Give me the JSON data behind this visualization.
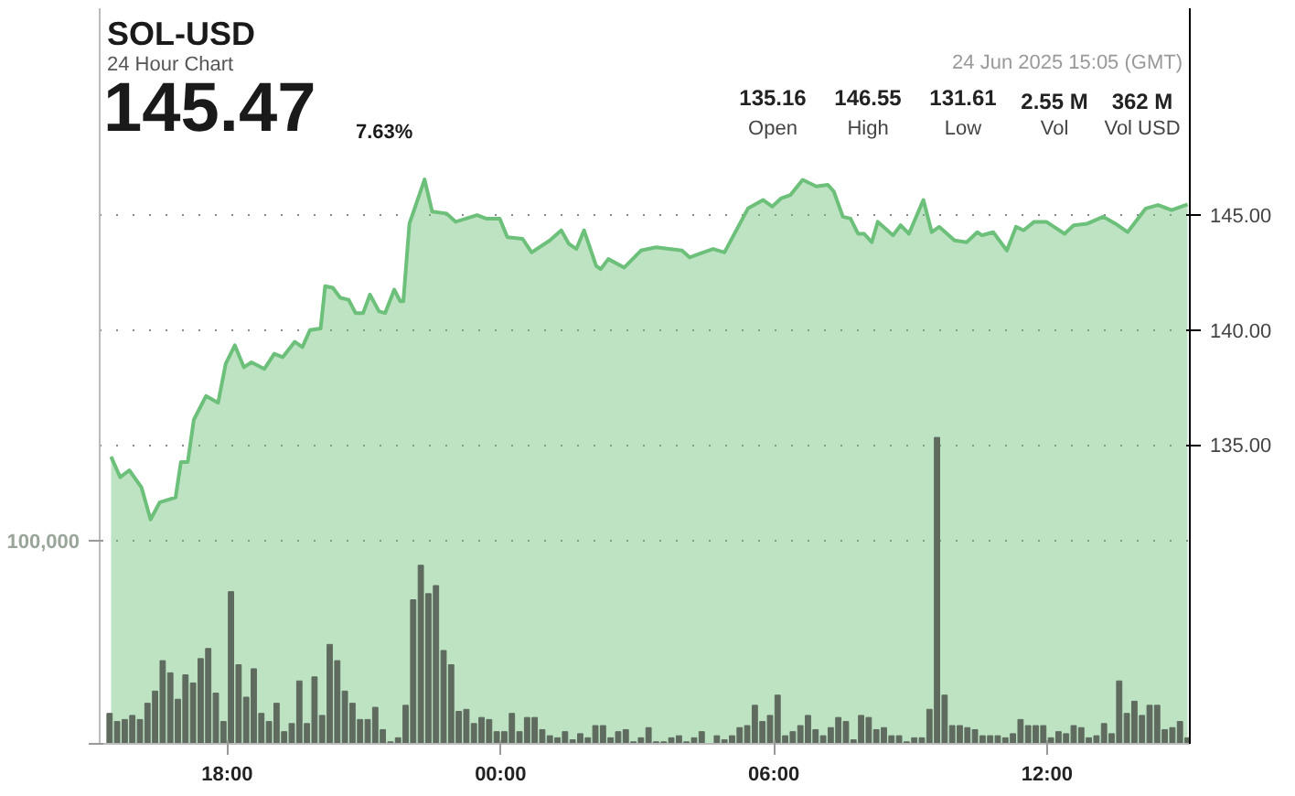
{
  "chart_data": {
    "type": "area",
    "title": "SOL-USD",
    "subtitle": "24 Hour Chart",
    "annotations": [
      "145.47",
      "7.63%",
      "135.16",
      "Open",
      "146.55",
      "High",
      "131.61",
      "Low",
      "2.55 M",
      "Vol",
      "362 M",
      "Vol USD",
      "24 Jun 2025 15:05 (GMT)"
    ],
    "xlim": [
      "2025-06-23T15:12",
      "2025-06-24T15:08"
    ],
    "xticks": [
      {
        "value": "2025-06-23T18:00",
        "label": "18:00"
      },
      {
        "value": "2025-06-24T00:00",
        "label": "00:00"
      },
      {
        "value": "2025-06-24T06:00",
        "label": "06:00"
      },
      {
        "value": "2025-06-24T12:00",
        "label": "12:00"
      }
    ],
    "ylim": [
      122,
      154
    ],
    "yticks": [
      {
        "value": 135,
        "label": "135.00"
      },
      {
        "value": 140,
        "label": "140.00"
      },
      {
        "value": 145,
        "label": "145.00"
      }
    ],
    "y2lim": [
      0,
      362500
    ],
    "y2ticks": [
      {
        "value": 0,
        "label": null
      },
      {
        "value": 100000,
        "label": "100,000"
      }
    ],
    "grid": "y",
    "series": [
      {
        "color": "#6cc07a",
        "x": [
          "2025-06-23T15:27",
          "2025-06-23T15:39",
          "2025-06-23T15:51",
          "2025-06-23T16:07",
          "2025-06-23T16:19",
          "2025-06-23T16:31",
          "2025-06-23T16:52",
          "2025-06-23T16:59",
          "2025-06-23T17:08",
          "2025-06-23T17:16",
          "2025-06-23T17:32",
          "2025-06-23T17:48",
          "2025-06-23T17:58",
          "2025-06-23T18:10",
          "2025-06-23T18:22",
          "2025-06-23T18:32",
          "2025-06-23T18:49",
          "2025-06-23T19:02",
          "2025-06-23T19:13",
          "2025-06-23T19:29",
          "2025-06-23T19:39",
          "2025-06-23T19:49",
          "2025-06-23T20:03",
          "2025-06-23T20:09",
          "2025-06-23T20:19",
          "2025-06-23T20:29",
          "2025-06-23T20:40",
          "2025-06-23T20:49",
          "2025-06-23T20:59",
          "2025-06-23T21:08",
          "2025-06-23T21:20",
          "2025-06-23T21:28",
          "2025-06-23T21:40",
          "2025-06-23T21:48",
          "2025-06-23T21:52",
          "2025-06-23T22:00",
          "2025-06-23T22:20",
          "2025-06-23T22:30",
          "2025-06-23T22:49",
          "2025-06-23T23:01",
          "2025-06-23T23:29",
          "2025-06-23T23:41",
          "2025-06-23T23:59",
          "2025-06-24T00:09",
          "2025-06-24T00:29",
          "2025-06-24T00:41",
          "2025-06-24T01:05",
          "2025-06-24T01:20",
          "2025-06-24T01:30",
          "2025-06-24T01:40",
          "2025-06-24T01:50",
          "2025-06-24T02:06",
          "2025-06-24T02:12",
          "2025-06-24T02:22",
          "2025-06-24T02:43",
          "2025-06-24T03:05",
          "2025-06-24T03:25",
          "2025-06-24T03:59",
          "2025-06-24T04:09",
          "2025-06-24T04:40",
          "2025-06-24T04:55",
          "2025-06-24T05:26",
          "2025-06-24T05:46",
          "2025-06-24T05:58",
          "2025-06-24T06:10",
          "2025-06-24T06:22",
          "2025-06-24T06:38",
          "2025-06-24T06:56",
          "2025-06-24T07:11",
          "2025-06-24T07:19",
          "2025-06-24T07:31",
          "2025-06-24T07:41",
          "2025-06-24T07:51",
          "2025-06-24T07:59",
          "2025-06-24T08:09",
          "2025-06-24T08:17",
          "2025-06-24T08:37",
          "2025-06-24T08:47",
          "2025-06-24T08:58",
          "2025-06-24T09:17",
          "2025-06-24T09:28",
          "2025-06-24T09:38",
          "2025-06-24T09:58",
          "2025-06-24T10:14",
          "2025-06-24T10:28",
          "2025-06-24T10:34",
          "2025-06-24T10:49",
          "2025-06-24T11:07",
          "2025-06-24T11:19",
          "2025-06-24T11:29",
          "2025-06-24T11:43",
          "2025-06-24T11:59",
          "2025-06-24T12:09",
          "2025-06-24T12:23",
          "2025-06-24T12:35",
          "2025-06-24T12:53",
          "2025-06-24T13:14",
          "2025-06-24T13:30",
          "2025-06-24T13:46",
          "2025-06-24T14:10",
          "2025-06-24T14:26",
          "2025-06-24T14:44",
          "2025-06-24T15:05"
        ],
        "values": [
          134.49,
          133.6,
          133.9,
          133.16,
          131.76,
          132.5,
          132.72,
          134.26,
          134.26,
          136.1,
          137.13,
          136.84,
          138.53,
          139.34,
          138.38,
          138.6,
          138.31,
          138.97,
          138.82,
          139.49,
          139.26,
          140.0,
          140.07,
          141.91,
          141.84,
          141.4,
          141.32,
          140.74,
          140.74,
          141.54,
          140.81,
          140.74,
          141.76,
          141.25,
          141.25,
          144.63,
          146.55,
          145.15,
          145.07,
          144.71,
          145.0,
          144.85,
          144.85,
          144.04,
          143.97,
          143.38,
          143.9,
          144.34,
          143.75,
          143.53,
          144.34,
          142.79,
          142.65,
          143.09,
          142.72,
          143.46,
          143.6,
          143.46,
          143.16,
          143.53,
          143.38,
          145.29,
          145.66,
          145.37,
          145.74,
          145.88,
          146.54,
          146.25,
          146.32,
          146.03,
          144.93,
          144.85,
          144.19,
          144.19,
          143.82,
          144.71,
          144.12,
          144.56,
          144.19,
          145.66,
          144.26,
          144.49,
          143.9,
          143.82,
          144.26,
          144.12,
          144.26,
          143.46,
          144.49,
          144.34,
          144.71,
          144.71,
          144.49,
          144.19,
          144.56,
          144.63,
          144.93,
          144.63,
          144.26,
          145.29,
          145.44,
          145.22,
          145.47
        ]
      },
      {
        "type": "bar",
        "axis": "y2",
        "color": "#5f6b5f",
        "x": [
          "2025-06-23T15:25",
          "2025-06-23T15:35",
          "2025-06-23T15:45",
          "2025-06-23T15:55",
          "2025-06-23T16:05",
          "2025-06-23T16:15",
          "2025-06-23T16:25",
          "2025-06-23T16:35",
          "2025-06-23T16:45",
          "2025-06-23T16:55",
          "2025-06-23T17:05",
          "2025-06-23T17:15",
          "2025-06-23T17:25",
          "2025-06-23T17:35",
          "2025-06-23T17:45",
          "2025-06-23T17:55",
          "2025-06-23T18:05",
          "2025-06-23T18:15",
          "2025-06-23T18:25",
          "2025-06-23T18:35",
          "2025-06-23T18:45",
          "2025-06-23T18:55",
          "2025-06-23T19:05",
          "2025-06-23T19:15",
          "2025-06-23T19:25",
          "2025-06-23T19:35",
          "2025-06-23T19:45",
          "2025-06-23T19:55",
          "2025-06-23T20:05",
          "2025-06-23T20:15",
          "2025-06-23T20:25",
          "2025-06-23T20:35",
          "2025-06-23T20:45",
          "2025-06-23T20:55",
          "2025-06-23T21:05",
          "2025-06-23T21:15",
          "2025-06-23T21:25",
          "2025-06-23T21:35",
          "2025-06-23T21:45",
          "2025-06-23T21:55",
          "2025-06-23T22:05",
          "2025-06-23T22:15",
          "2025-06-23T22:25",
          "2025-06-23T22:35",
          "2025-06-23T22:45",
          "2025-06-23T22:55",
          "2025-06-23T23:05",
          "2025-06-23T23:15",
          "2025-06-23T23:25",
          "2025-06-23T23:35",
          "2025-06-23T23:45",
          "2025-06-23T23:55",
          "2025-06-24T00:05",
          "2025-06-24T00:15",
          "2025-06-24T00:25",
          "2025-06-24T00:35",
          "2025-06-24T00:45",
          "2025-06-24T00:55",
          "2025-06-24T01:05",
          "2025-06-24T01:15",
          "2025-06-24T01:25",
          "2025-06-24T01:35",
          "2025-06-24T01:45",
          "2025-06-24T01:55",
          "2025-06-24T02:05",
          "2025-06-24T02:15",
          "2025-06-24T02:25",
          "2025-06-24T02:35",
          "2025-06-24T02:45",
          "2025-06-24T02:55",
          "2025-06-24T03:05",
          "2025-06-24T03:15",
          "2025-06-24T03:25",
          "2025-06-24T03:35",
          "2025-06-24T03:45",
          "2025-06-24T03:55",
          "2025-06-24T04:05",
          "2025-06-24T04:15",
          "2025-06-24T04:25",
          "2025-06-24T04:35",
          "2025-06-24T04:45",
          "2025-06-24T04:55",
          "2025-06-24T05:05",
          "2025-06-24T05:15",
          "2025-06-24T05:25",
          "2025-06-24T05:35",
          "2025-06-24T05:45",
          "2025-06-24T05:55",
          "2025-06-24T06:05",
          "2025-06-24T06:15",
          "2025-06-24T06:25",
          "2025-06-24T06:35",
          "2025-06-24T06:45",
          "2025-06-24T06:55",
          "2025-06-24T07:05",
          "2025-06-24T07:15",
          "2025-06-24T07:25",
          "2025-06-24T07:35",
          "2025-06-24T07:45",
          "2025-06-24T07:55",
          "2025-06-24T08:05",
          "2025-06-24T08:15",
          "2025-06-24T08:25",
          "2025-06-24T08:35",
          "2025-06-24T08:45",
          "2025-06-24T08:55",
          "2025-06-24T09:05",
          "2025-06-24T09:15",
          "2025-06-24T09:25",
          "2025-06-24T09:35",
          "2025-06-24T09:45",
          "2025-06-24T09:55",
          "2025-06-24T10:05",
          "2025-06-24T10:15",
          "2025-06-24T10:25",
          "2025-06-24T10:35",
          "2025-06-24T10:45",
          "2025-06-24T10:55",
          "2025-06-24T11:05",
          "2025-06-24T11:15",
          "2025-06-24T11:25",
          "2025-06-24T11:35",
          "2025-06-24T11:45",
          "2025-06-24T11:55",
          "2025-06-24T12:05",
          "2025-06-24T12:15",
          "2025-06-24T12:25",
          "2025-06-24T12:35",
          "2025-06-24T12:45",
          "2025-06-24T12:55",
          "2025-06-24T13:05",
          "2025-06-24T13:15",
          "2025-06-24T13:25",
          "2025-06-24T13:35",
          "2025-06-24T13:45",
          "2025-06-24T13:55",
          "2025-06-24T14:05",
          "2025-06-24T14:15",
          "2025-06-24T14:25",
          "2025-06-24T14:35",
          "2025-06-24T14:45",
          "2025-06-24T14:55",
          "2025-06-24T15:05"
        ],
        "values": [
          15000,
          11000,
          12000,
          14000,
          12000,
          20000,
          26000,
          41000,
          35000,
          22000,
          34000,
          30000,
          42000,
          47000,
          25000,
          11000,
          75000,
          39000,
          23000,
          37000,
          15000,
          11000,
          20000,
          6000,
          10000,
          31000,
          10000,
          33000,
          14000,
          49000,
          41000,
          26000,
          20000,
          12000,
          12000,
          18000,
          7000,
          1000,
          3000,
          19000,
          71000,
          88000,
          74000,
          78000,
          46000,
          39000,
          16000,
          17000,
          10000,
          13000,
          12000,
          6000,
          6000,
          15000,
          6000,
          13000,
          13000,
          7000,
          4000,
          3000,
          6000,
          2000,
          5000,
          3000,
          9000,
          9000,
          3000,
          6000,
          7000,
          1000,
          3000,
          8000,
          1000,
          1000,
          3000,
          4000,
          1000,
          3000,
          6000,
          0,
          4000,
          2000,
          4000,
          8000,
          9000,
          19000,
          11000,
          14000,
          24000,
          4000,
          6000,
          9000,
          14000,
          7000,
          4000,
          8000,
          13000,
          11000,
          2000,
          14000,
          13000,
          7000,
          8000,
          4000,
          4000,
          1000,
          3000,
          3000,
          17000,
          151000,
          24000,
          9000,
          9000,
          8000,
          7000,
          4000,
          4000,
          4000,
          3000,
          5000,
          12000,
          9000,
          9000,
          9000,
          3000,
          6000,
          5000,
          9000,
          8000,
          3000,
          4000,
          10000,
          5000,
          31000,
          15000,
          21000,
          14000,
          19000,
          19000,
          7000,
          8000,
          11000,
          3000
        ]
      }
    ]
  }
}
